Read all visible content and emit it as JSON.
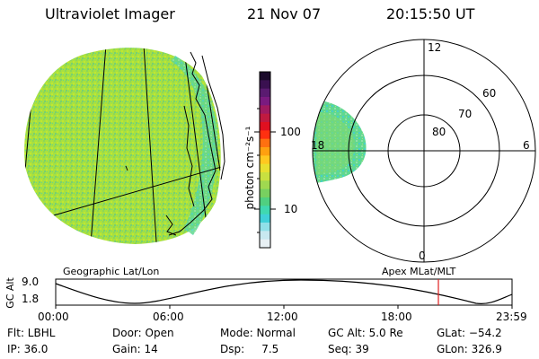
{
  "header": {
    "instrument": "Ultraviolet Imager",
    "date": "21 Nov 07",
    "time": "20:15:50 UT"
  },
  "colorbar": {
    "unit_label": "photon cm⁻²s⁻¹",
    "ticks": [
      "100",
      "10"
    ],
    "colors": [
      "#1a0a2a",
      "#3a1050",
      "#5a1a70",
      "#7a1a80",
      "#a01a60",
      "#c01a40",
      "#e01020",
      "#ff3010",
      "#ff7010",
      "#ffa010",
      "#ffc820",
      "#e8e030",
      "#c8e040",
      "#a0d850",
      "#78d060",
      "#50d080",
      "#40d8b0",
      "#40d0d8",
      "#90e0e8",
      "#c8e8f0",
      "#e8f0f4"
    ]
  },
  "left_panel": {
    "caption": "Geographic Lat/Lon"
  },
  "right_panel": {
    "caption": "Apex MLat/MLT",
    "lat_labels": [
      "80",
      "70",
      "60"
    ],
    "mlt_labels": [
      "12",
      "18",
      "6",
      "0"
    ]
  },
  "gc_alt_plot": {
    "ylabel": "GC Alt",
    "y_ticks": [
      "9.0",
      "1.8"
    ],
    "x_ticks": [
      "00:00",
      "06:00",
      "12:00",
      "18:00",
      "23:59"
    ],
    "current_time_color": "#e02020"
  },
  "status": {
    "flt": "Flt: LBHL",
    "ip": "IP: 36.0",
    "door": "Door: Open",
    "gain": "Gain: 14",
    "mode": "Mode: Normal",
    "dsp": "Dsp:     7.5",
    "gc_alt": "GC Alt: 5.0 Re",
    "seq": "Seq: 39",
    "glat": "GLat: −54.2",
    "glon": "GLon: 326.9"
  }
}
